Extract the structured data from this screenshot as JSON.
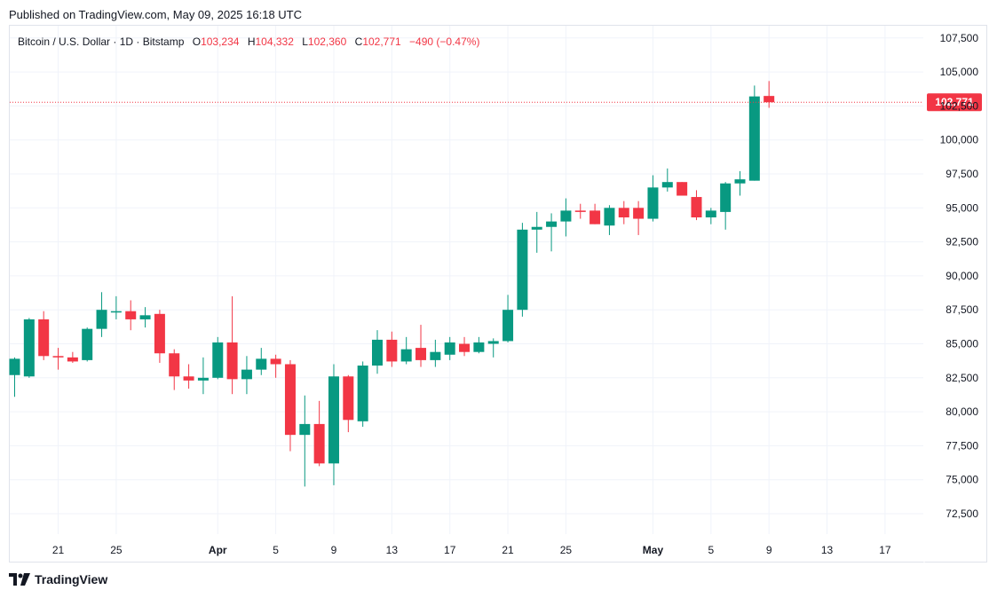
{
  "header": {
    "published": "Published on TradingView.com, May 09, 2025 16:18 UTC"
  },
  "legend": {
    "symbol": "Bitcoin / U.S. Dollar · 1D · Bitstamp",
    "o_label": "O",
    "o_value": "103,234",
    "h_label": "H",
    "h_value": "104,332",
    "l_label": "L",
    "l_value": "102,360",
    "c_label": "C",
    "c_value": "102,771",
    "change": "−490 (−0.47%)"
  },
  "footer": {
    "brand": "TradingView",
    "logo_icon": "tradingview-logo-icon"
  },
  "colors": {
    "up": "#089981",
    "down": "#f23645",
    "grid": "#f0f3fa",
    "text": "#131722"
  },
  "chart_data": {
    "type": "candlestick",
    "ylim": [
      71000,
      108400
    ],
    "y_ticks": [
      72500,
      75000,
      77500,
      80000,
      82500,
      85000,
      87500,
      90000,
      92500,
      95000,
      97500,
      100000,
      102500,
      105000,
      107500
    ],
    "y_tick_labels": [
      "72,500",
      "75,000",
      "77,500",
      "80,000",
      "82,500",
      "85,000",
      "87,500",
      "90,000",
      "92,500",
      "95,000",
      "97,500",
      "100,000",
      "102,500",
      "105,000",
      "107,500"
    ],
    "x_ticks": [
      {
        "i": 3,
        "label": "21"
      },
      {
        "i": 7,
        "label": "25"
      },
      {
        "i": 14,
        "label": "Apr"
      },
      {
        "i": 18,
        "label": "5"
      },
      {
        "i": 22,
        "label": "9"
      },
      {
        "i": 26,
        "label": "13"
      },
      {
        "i": 30,
        "label": "17"
      },
      {
        "i": 34,
        "label": "21"
      },
      {
        "i": 38,
        "label": "25"
      },
      {
        "i": 44,
        "label": "May"
      },
      {
        "i": 48,
        "label": "5"
      },
      {
        "i": 52,
        "label": "9"
      },
      {
        "i": 56,
        "label": "13"
      },
      {
        "i": 60,
        "label": "17"
      }
    ],
    "last_price": 102771,
    "last_price_label": "102,771",
    "candles": [
      {
        "o": 82700,
        "h": 84000,
        "l": 81100,
        "c": 83900
      },
      {
        "o": 82600,
        "h": 86900,
        "l": 82500,
        "c": 86800
      },
      {
        "o": 86800,
        "h": 87400,
        "l": 83800,
        "c": 84100
      },
      {
        "o": 84100,
        "h": 84700,
        "l": 83100,
        "c": 84000
      },
      {
        "o": 84000,
        "h": 84400,
        "l": 83600,
        "c": 83700
      },
      {
        "o": 83800,
        "h": 86200,
        "l": 83700,
        "c": 86100
      },
      {
        "o": 86100,
        "h": 88800,
        "l": 85500,
        "c": 87500
      },
      {
        "o": 87400,
        "h": 88500,
        "l": 86800,
        "c": 87400
      },
      {
        "o": 87400,
        "h": 88200,
        "l": 86000,
        "c": 86800
      },
      {
        "o": 86800,
        "h": 87700,
        "l": 86200,
        "c": 87100
      },
      {
        "o": 87200,
        "h": 87500,
        "l": 83600,
        "c": 84300
      },
      {
        "o": 84300,
        "h": 84600,
        "l": 81600,
        "c": 82600
      },
      {
        "o": 82600,
        "h": 83500,
        "l": 81700,
        "c": 82300
      },
      {
        "o": 82300,
        "h": 84000,
        "l": 81300,
        "c": 82500
      },
      {
        "o": 82500,
        "h": 85500,
        "l": 82400,
        "c": 85100
      },
      {
        "o": 85100,
        "h": 88500,
        "l": 81300,
        "c": 82400
      },
      {
        "o": 82400,
        "h": 84100,
        "l": 81300,
        "c": 83100
      },
      {
        "o": 83100,
        "h": 84700,
        "l": 82700,
        "c": 83900
      },
      {
        "o": 83900,
        "h": 84200,
        "l": 82500,
        "c": 83500
      },
      {
        "o": 83500,
        "h": 83800,
        "l": 77100,
        "c": 78300
      },
      {
        "o": 78300,
        "h": 81200,
        "l": 74500,
        "c": 79100
      },
      {
        "o": 79100,
        "h": 80800,
        "l": 76000,
        "c": 76200
      },
      {
        "o": 76200,
        "h": 83500,
        "l": 74600,
        "c": 82600
      },
      {
        "o": 82600,
        "h": 82700,
        "l": 78500,
        "c": 79400
      },
      {
        "o": 79300,
        "h": 83700,
        "l": 78900,
        "c": 83400
      },
      {
        "o": 83400,
        "h": 86000,
        "l": 82800,
        "c": 85300
      },
      {
        "o": 85300,
        "h": 85900,
        "l": 83300,
        "c": 83700
      },
      {
        "o": 83700,
        "h": 85500,
        "l": 83500,
        "c": 84600
      },
      {
        "o": 84700,
        "h": 86400,
        "l": 83300,
        "c": 83800
      },
      {
        "o": 83800,
        "h": 85300,
        "l": 83300,
        "c": 84400
      },
      {
        "o": 84200,
        "h": 85500,
        "l": 83800,
        "c": 85100
      },
      {
        "o": 85000,
        "h": 85500,
        "l": 84100,
        "c": 84400
      },
      {
        "o": 84400,
        "h": 85500,
        "l": 84300,
        "c": 85100
      },
      {
        "o": 85000,
        "h": 85400,
        "l": 84000,
        "c": 85200
      },
      {
        "o": 85200,
        "h": 88600,
        "l": 85100,
        "c": 87500
      },
      {
        "o": 87500,
        "h": 93900,
        "l": 87000,
        "c": 93400
      },
      {
        "o": 93400,
        "h": 94700,
        "l": 91700,
        "c": 93600
      },
      {
        "o": 93600,
        "h": 94600,
        "l": 91800,
        "c": 94000
      },
      {
        "o": 94000,
        "h": 95700,
        "l": 92900,
        "c": 94800
      },
      {
        "o": 94800,
        "h": 95300,
        "l": 94200,
        "c": 94700
      },
      {
        "o": 94800,
        "h": 95300,
        "l": 93800,
        "c": 93800
      },
      {
        "o": 93700,
        "h": 95200,
        "l": 93000,
        "c": 95000
      },
      {
        "o": 95000,
        "h": 95500,
        "l": 93800,
        "c": 94300
      },
      {
        "o": 95000,
        "h": 95500,
        "l": 93000,
        "c": 94200
      },
      {
        "o": 94200,
        "h": 97400,
        "l": 94000,
        "c": 96500
      },
      {
        "o": 96500,
        "h": 97900,
        "l": 96200,
        "c": 96900
      },
      {
        "o": 96900,
        "h": 96900,
        "l": 95900,
        "c": 95900
      },
      {
        "o": 95800,
        "h": 96300,
        "l": 94100,
        "c": 94300
      },
      {
        "o": 94300,
        "h": 95000,
        "l": 93800,
        "c": 94800
      },
      {
        "o": 94700,
        "h": 96900,
        "l": 93400,
        "c": 96800
      },
      {
        "o": 96800,
        "h": 97700,
        "l": 95900,
        "c": 97100
      },
      {
        "o": 97000,
        "h": 104000,
        "l": 97000,
        "c": 103200
      },
      {
        "o": 103234,
        "h": 104332,
        "l": 102360,
        "c": 102771
      }
    ]
  }
}
